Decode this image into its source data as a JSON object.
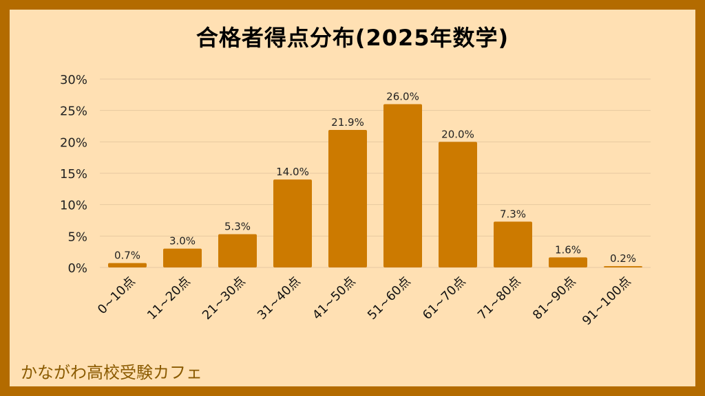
{
  "chart_data": {
    "type": "bar",
    "title": "合格者得点分布(2025年数学)",
    "categories": [
      "0~10点",
      "11~20点",
      "21~30点",
      "31~40点",
      "41~50点",
      "51~60点",
      "61~70点",
      "71~80点",
      "81~90点",
      "91~100点"
    ],
    "values": [
      0.7,
      3.0,
      5.3,
      14.0,
      21.9,
      26.0,
      20.0,
      7.3,
      1.6,
      0.2
    ],
    "data_labels": [
      "0.7%",
      "3.0%",
      "5.3%",
      "14.0%",
      "21.9%",
      "26.0%",
      "20.0%",
      "7.3%",
      "1.6%",
      "0.2%"
    ],
    "ylim": [
      0,
      30
    ],
    "yticks": [
      0,
      5,
      10,
      15,
      20,
      25,
      30
    ],
    "ytick_labels": [
      "0%",
      "5%",
      "10%",
      "15%",
      "20%",
      "25%",
      "30%"
    ],
    "grid": true,
    "colors": {
      "bar": "#cc7a00",
      "background": "#ffe0b3",
      "border": "#b36b00"
    }
  },
  "footer": {
    "text": "かながわ高校受験カフェ"
  }
}
